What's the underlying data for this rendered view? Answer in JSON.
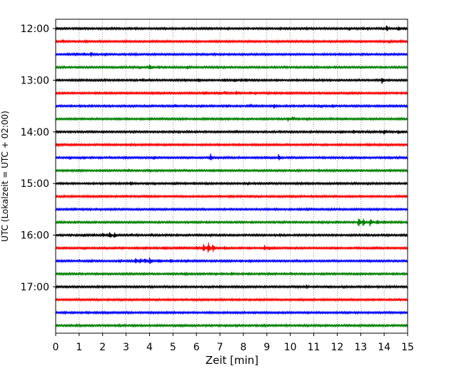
{
  "chart_data": {
    "type": "line",
    "title": "",
    "xlabel": "Zeit  [min]",
    "ylabel": "UTC (Lokalzeit = UTC + 02:00)",
    "xlim": [
      0,
      15
    ],
    "x_ticks": [
      "0",
      "1",
      "2",
      "3",
      "4",
      "5",
      "6",
      "7",
      "8",
      "9",
      "10",
      "11",
      "12",
      "13",
      "14",
      "15"
    ],
    "y_ticks": [
      "12:00",
      "13:00",
      "14:00",
      "15:00",
      "16:00",
      "17:00"
    ],
    "grid": "vertical dotted lines at each minute",
    "trace_interval_min": 15,
    "color_cycle": [
      "#000000",
      "#ff0000",
      "#0000ff",
      "#008000"
    ],
    "series": [
      {
        "start": "12:00",
        "events": [
          {
            "x": 12.5,
            "a": 3
          },
          {
            "x": 13.1,
            "a": 2.5
          },
          {
            "x": 13.3,
            "a": 2.5
          },
          {
            "x": 13.9,
            "a": 2
          },
          {
            "x": 14.1,
            "a": 6
          },
          {
            "x": 14.6,
            "a": 5
          },
          {
            "x": 10.7,
            "a": 2
          }
        ]
      },
      {
        "start": "12:15",
        "events": [
          {
            "x": 0.3,
            "a": 4
          },
          {
            "x": 1.3,
            "a": 3
          },
          {
            "x": 3.0,
            "a": 2
          },
          {
            "x": 7.0,
            "a": 2
          },
          {
            "x": 14.2,
            "a": 3
          },
          {
            "x": 14.7,
            "a": 3
          }
        ]
      },
      {
        "start": "12:30",
        "events": [
          {
            "x": 0.5,
            "a": 3
          },
          {
            "x": 0.9,
            "a": 3
          },
          {
            "x": 1.2,
            "a": 3
          },
          {
            "x": 1.5,
            "a": 4
          },
          {
            "x": 2.1,
            "a": 3
          },
          {
            "x": 3.4,
            "a": 2
          },
          {
            "x": 3.9,
            "a": 2
          },
          {
            "x": 5.0,
            "a": 2
          }
        ]
      },
      {
        "start": "12:45",
        "events": [
          {
            "x": 0.3,
            "a": 2
          },
          {
            "x": 1.5,
            "a": 2
          },
          {
            "x": 2.0,
            "a": 2
          },
          {
            "x": 2.4,
            "a": 2.5
          },
          {
            "x": 3.3,
            "a": 3
          },
          {
            "x": 3.6,
            "a": 3
          },
          {
            "x": 4.0,
            "a": 5
          },
          {
            "x": 4.4,
            "a": 3
          },
          {
            "x": 5.6,
            "a": 3
          }
        ]
      },
      {
        "start": "13:00",
        "events": [
          {
            "x": 3.7,
            "a": 3
          },
          {
            "x": 4.0,
            "a": 2.5
          },
          {
            "x": 5.5,
            "a": 3
          },
          {
            "x": 6.1,
            "a": 3
          },
          {
            "x": 7.2,
            "a": 3
          },
          {
            "x": 7.6,
            "a": 4
          },
          {
            "x": 8.1,
            "a": 3
          },
          {
            "x": 8.4,
            "a": 2.5
          },
          {
            "x": 11.0,
            "a": 2
          },
          {
            "x": 13.9,
            "a": 6
          }
        ]
      },
      {
        "start": "13:15",
        "events": [
          {
            "x": 6.3,
            "a": 3
          },
          {
            "x": 6.8,
            "a": 3
          },
          {
            "x": 7.2,
            "a": 3
          },
          {
            "x": 7.7,
            "a": 4
          },
          {
            "x": 8.3,
            "a": 2.5
          },
          {
            "x": 8.5,
            "a": 3
          },
          {
            "x": 9.1,
            "a": 2
          },
          {
            "x": 9.6,
            "a": 2
          }
        ]
      },
      {
        "start": "13:30",
        "events": [
          {
            "x": 5.1,
            "a": 3
          },
          {
            "x": 6.2,
            "a": 3
          },
          {
            "x": 7.3,
            "a": 3
          },
          {
            "x": 8.3,
            "a": 3
          },
          {
            "x": 9.3,
            "a": 4
          },
          {
            "x": 10.5,
            "a": 2.5
          },
          {
            "x": 11.3,
            "a": 3
          },
          {
            "x": 11.8,
            "a": 3
          }
        ]
      },
      {
        "start": "13:45",
        "events": [
          {
            "x": 4.1,
            "a": 2
          },
          {
            "x": 5.1,
            "a": 2
          },
          {
            "x": 6.3,
            "a": 2
          },
          {
            "x": 9.9,
            "a": 4
          },
          {
            "x": 10.1,
            "a": 4
          },
          {
            "x": 10.7,
            "a": 3
          },
          {
            "x": 11.7,
            "a": 2.5
          },
          {
            "x": 12.3,
            "a": 2.5
          }
        ]
      },
      {
        "start": "14:00",
        "events": [
          {
            "x": 6.4,
            "a": 2
          },
          {
            "x": 7.7,
            "a": 2.5
          },
          {
            "x": 12.2,
            "a": 3
          },
          {
            "x": 12.7,
            "a": 3.5
          },
          {
            "x": 13.3,
            "a": 2.5
          },
          {
            "x": 14.0,
            "a": 5
          },
          {
            "x": 14.6,
            "a": 4
          }
        ]
      },
      {
        "start": "14:15",
        "events": [
          {
            "x": 0.1,
            "a": 3
          },
          {
            "x": 3.7,
            "a": 3
          },
          {
            "x": 14.6,
            "a": 2.5
          }
        ]
      },
      {
        "start": "14:30",
        "events": [
          {
            "x": 0.6,
            "a": 3
          },
          {
            "x": 1.2,
            "a": 3
          },
          {
            "x": 2.3,
            "a": 3
          },
          {
            "x": 4.2,
            "a": 3
          },
          {
            "x": 6.6,
            "a": 6
          },
          {
            "x": 9.5,
            "a": 6
          }
        ]
      },
      {
        "start": "14:45",
        "events": [
          {
            "x": 2.1,
            "a": 2
          },
          {
            "x": 3.1,
            "a": 3
          },
          {
            "x": 4.0,
            "a": 2
          },
          {
            "x": 5.1,
            "a": 2
          },
          {
            "x": 6.7,
            "a": 2.5
          },
          {
            "x": 10.3,
            "a": 2
          },
          {
            "x": 11.2,
            "a": 2
          }
        ]
      },
      {
        "start": "15:00",
        "events": [
          {
            "x": 3.2,
            "a": 4
          },
          {
            "x": 3.9,
            "a": 2.5
          },
          {
            "x": 4.2,
            "a": 3
          },
          {
            "x": 5.1,
            "a": 3
          },
          {
            "x": 5.9,
            "a": 3
          },
          {
            "x": 6.4,
            "a": 2.5
          },
          {
            "x": 7.3,
            "a": 2
          },
          {
            "x": 8.2,
            "a": 3
          },
          {
            "x": 9.1,
            "a": 2.5
          },
          {
            "x": 10.3,
            "a": 2
          }
        ]
      },
      {
        "start": "15:15",
        "events": [
          {
            "x": 7.5,
            "a": 3
          },
          {
            "x": 8.3,
            "a": 3
          },
          {
            "x": 10.0,
            "a": 3
          }
        ]
      },
      {
        "start": "15:30",
        "events": [
          {
            "x": 0.8,
            "a": 3
          },
          {
            "x": 3.5,
            "a": 2.5
          },
          {
            "x": 7.7,
            "a": 2
          },
          {
            "x": 10.7,
            "a": 2
          },
          {
            "x": 12.1,
            "a": 2
          }
        ]
      },
      {
        "start": "15:45",
        "events": [
          {
            "x": 12.9,
            "a": 9
          },
          {
            "x": 13.1,
            "a": 7
          },
          {
            "x": 13.4,
            "a": 7
          },
          {
            "x": 13.7,
            "a": 4
          },
          {
            "x": 14.0,
            "a": 3
          },
          {
            "x": 14.3,
            "a": 2
          },
          {
            "x": 14.7,
            "a": 2
          }
        ]
      },
      {
        "start": "16:00",
        "events": [
          {
            "x": 1.2,
            "a": 3
          },
          {
            "x": 1.6,
            "a": 3
          },
          {
            "x": 2.0,
            "a": 4
          },
          {
            "x": 2.3,
            "a": 6
          },
          {
            "x": 2.5,
            "a": 5
          },
          {
            "x": 3.2,
            "a": 2.5
          },
          {
            "x": 4.1,
            "a": 2.5
          }
        ]
      },
      {
        "start": "16:15",
        "events": [
          {
            "x": 1.2,
            "a": 3
          },
          {
            "x": 2.5,
            "a": 3
          },
          {
            "x": 3.8,
            "a": 3
          },
          {
            "x": 4.6,
            "a": 3
          },
          {
            "x": 5.3,
            "a": 3
          },
          {
            "x": 6.0,
            "a": 4
          },
          {
            "x": 6.3,
            "a": 7
          },
          {
            "x": 6.5,
            "a": 10
          },
          {
            "x": 6.7,
            "a": 7
          },
          {
            "x": 7.2,
            "a": 3
          },
          {
            "x": 8.9,
            "a": 5
          },
          {
            "x": 9.1,
            "a": 4
          }
        ]
      },
      {
        "start": "16:30",
        "events": [
          {
            "x": 1.5,
            "a": 2.5
          },
          {
            "x": 2.7,
            "a": 2.5
          },
          {
            "x": 3.4,
            "a": 5
          },
          {
            "x": 3.6,
            "a": 5
          },
          {
            "x": 3.8,
            "a": 5
          },
          {
            "x": 4.0,
            "a": 6
          },
          {
            "x": 4.4,
            "a": 4
          },
          {
            "x": 4.9,
            "a": 4
          },
          {
            "x": 5.6,
            "a": 3
          },
          {
            "x": 6.0,
            "a": 2.5
          },
          {
            "x": 7.2,
            "a": 3
          },
          {
            "x": 7.9,
            "a": 3
          },
          {
            "x": 8.3,
            "a": 2.5
          }
        ]
      },
      {
        "start": "16:45",
        "events": [
          {
            "x": 0.6,
            "a": 2
          },
          {
            "x": 5.5,
            "a": 2
          },
          {
            "x": 6.8,
            "a": 2
          },
          {
            "x": 7.5,
            "a": 4
          },
          {
            "x": 8.2,
            "a": 3
          },
          {
            "x": 9.2,
            "a": 2.5
          },
          {
            "x": 10.0,
            "a": 3
          }
        ]
      },
      {
        "start": "17:00",
        "events": [
          {
            "x": 10.7,
            "a": 4
          },
          {
            "x": 11.1,
            "a": 3
          },
          {
            "x": 11.6,
            "a": 2.5
          },
          {
            "x": 12.3,
            "a": 2.5
          },
          {
            "x": 13.2,
            "a": 2
          },
          {
            "x": 14.4,
            "a": 2.5
          }
        ]
      },
      {
        "start": "17:15",
        "events": [
          {
            "x": 14.6,
            "a": 3
          }
        ]
      },
      {
        "start": "17:30",
        "events": [
          {
            "x": 0.4,
            "a": 2
          },
          {
            "x": 1.1,
            "a": 2
          },
          {
            "x": 1.4,
            "a": 2
          },
          {
            "x": 2.0,
            "a": 2
          },
          {
            "x": 2.8,
            "a": 2
          }
        ]
      },
      {
        "start": "17:45",
        "events": [
          {
            "x": 0.9,
            "a": 2
          },
          {
            "x": 2.1,
            "a": 2
          },
          {
            "x": 3.3,
            "a": 2
          },
          {
            "x": 4.3,
            "a": 2.5
          },
          {
            "x": 5.5,
            "a": 2.5
          },
          {
            "x": 6.4,
            "a": 2
          },
          {
            "x": 7.7,
            "a": 2
          },
          {
            "x": 8.9,
            "a": 2
          }
        ]
      }
    ]
  }
}
